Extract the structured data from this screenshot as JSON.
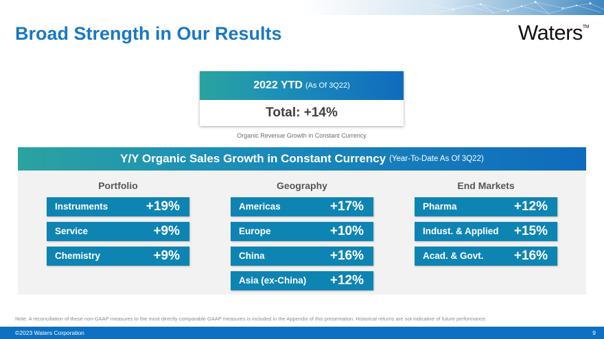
{
  "header": {
    "title": "Broad Strength in Our Results",
    "logo_text": "Waters",
    "logo_tm": "TM"
  },
  "ytd": {
    "heading": "2022 YTD",
    "heading_note": "(As Of 3Q22)",
    "total": "Total: +14%",
    "caption": "Organic Revenue Growth in Constant Currency"
  },
  "panel": {
    "heading": "Y/Y Organic Sales Growth in Constant Currency",
    "heading_note": "(Year-To-Date As Of 3Q22)",
    "columns": [
      {
        "title": "Portfolio",
        "items": [
          {
            "label": "Instruments",
            "value": "+19%"
          },
          {
            "label": "Service",
            "value": "+9%"
          },
          {
            "label": "Chemistry",
            "value": "+9%"
          }
        ]
      },
      {
        "title": "Geography",
        "items": [
          {
            "label": "Americas",
            "value": "+17%"
          },
          {
            "label": "Europe",
            "value": "+10%"
          },
          {
            "label": "China",
            "value": "+16%"
          },
          {
            "label": "Asia (ex-China)",
            "value": "+12%"
          }
        ]
      },
      {
        "title": "End Markets",
        "items": [
          {
            "label": "Pharma",
            "value": "+12%"
          },
          {
            "label": "Indust. & Applied",
            "value": "+15%"
          },
          {
            "label": "Acad. & Govt.",
            "value": "+16%"
          }
        ]
      }
    ]
  },
  "note": "Note: A reconciliation of these non-GAAP measures to the most directly comparable GAAP measures is included in the Appendix of this presentation. Historical returns are not indicative of future performance.",
  "footer": {
    "copyright": "©2023 Waters Corporation",
    "page_number": "9"
  },
  "colors": {
    "title_blue": "#1a78c2",
    "tile_blue": "#0e84b3",
    "footer_blue": "#0d70c0",
    "gradient_teal": "#2aa3a0"
  }
}
